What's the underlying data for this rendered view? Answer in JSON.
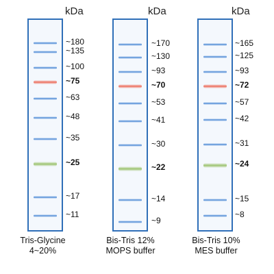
{
  "unit_label": "kDa",
  "ladders": [
    {
      "caption": [
        "Tris-Glycine",
        "4~20%"
      ],
      "bands": [
        {
          "label": "~180",
          "color": "blue",
          "bold": false
        },
        {
          "label": "~135",
          "color": "blue",
          "bold": false
        },
        {
          "label": "~100",
          "color": "blue",
          "bold": false
        },
        {
          "label": "~75",
          "color": "red",
          "bold": true
        },
        {
          "label": "~63",
          "color": "blue",
          "bold": false
        },
        {
          "label": "~48",
          "color": "blue",
          "bold": false
        },
        {
          "label": "~35",
          "color": "blue",
          "bold": false
        },
        {
          "label": "~25",
          "color": "green",
          "bold": true
        },
        {
          "label": "~17",
          "color": "blue",
          "bold": false
        },
        {
          "label": "~11",
          "color": "blue",
          "bold": false
        }
      ]
    },
    {
      "caption": [
        "Bis-Tris 12%",
        "MOPS buffer"
      ],
      "bands": [
        {
          "label": "~170",
          "color": "blue",
          "bold": false
        },
        {
          "label": "~130",
          "color": "blue",
          "bold": false
        },
        {
          "label": "~93",
          "color": "blue",
          "bold": false
        },
        {
          "label": "~70",
          "color": "red",
          "bold": true
        },
        {
          "label": "~53",
          "color": "blue",
          "bold": false
        },
        {
          "label": "~41",
          "color": "blue",
          "bold": false
        },
        {
          "label": "~30",
          "color": "blue",
          "bold": false
        },
        {
          "label": "~22",
          "color": "green",
          "bold": true
        },
        {
          "label": "~14",
          "color": "blue",
          "bold": false
        },
        {
          "label": "~9",
          "color": "blue",
          "bold": false
        }
      ]
    },
    {
      "caption": [
        "Bis-Tris 10%",
        "MES buffer"
      ],
      "bands": [
        {
          "label": "~165",
          "color": "blue",
          "bold": false
        },
        {
          "label": "~125",
          "color": "blue",
          "bold": false
        },
        {
          "label": "~93",
          "color": "blue",
          "bold": false
        },
        {
          "label": "~72",
          "color": "red",
          "bold": true
        },
        {
          "label": "~57",
          "color": "blue",
          "bold": false
        },
        {
          "label": "~42",
          "color": "blue",
          "bold": false
        },
        {
          "label": "~31",
          "color": "blue",
          "bold": false
        },
        {
          "label": "~24",
          "color": "green",
          "bold": true
        },
        {
          "label": "~15",
          "color": "blue",
          "bold": false
        },
        {
          "label": "~8",
          "color": "blue",
          "bold": false
        }
      ]
    }
  ],
  "colors": {
    "blue": "#5b93d9",
    "red": "#ee7a6a",
    "green": "#a3c77a",
    "lane_border": "#2f6fb8"
  }
}
